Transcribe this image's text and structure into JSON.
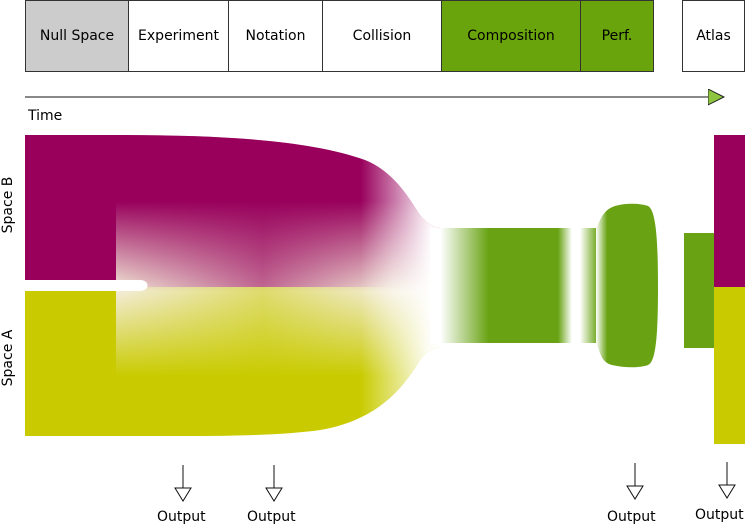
{
  "phases": [
    {
      "label": "Null Space",
      "fill": "#cccccc"
    },
    {
      "label": "Experiment",
      "fill": "#ffffff"
    },
    {
      "label": "Notation",
      "fill": "#ffffff"
    },
    {
      "label": "Collision",
      "fill": "#ffffff"
    },
    {
      "label": "Composition",
      "fill": "#6aa40c"
    },
    {
      "label": "Perf.",
      "fill": "#6aa40c"
    },
    {
      "label": "Atlas",
      "fill": "#ffffff"
    }
  ],
  "axis": {
    "time_label": "Time"
  },
  "spaces": {
    "b_label": "Space B",
    "a_label": "Space A"
  },
  "outputs": {
    "label": "Output"
  },
  "colors": {
    "space_b": "#98005c",
    "space_a": "#c9cb00",
    "merged": "#69a314",
    "null": "#cccccc"
  }
}
